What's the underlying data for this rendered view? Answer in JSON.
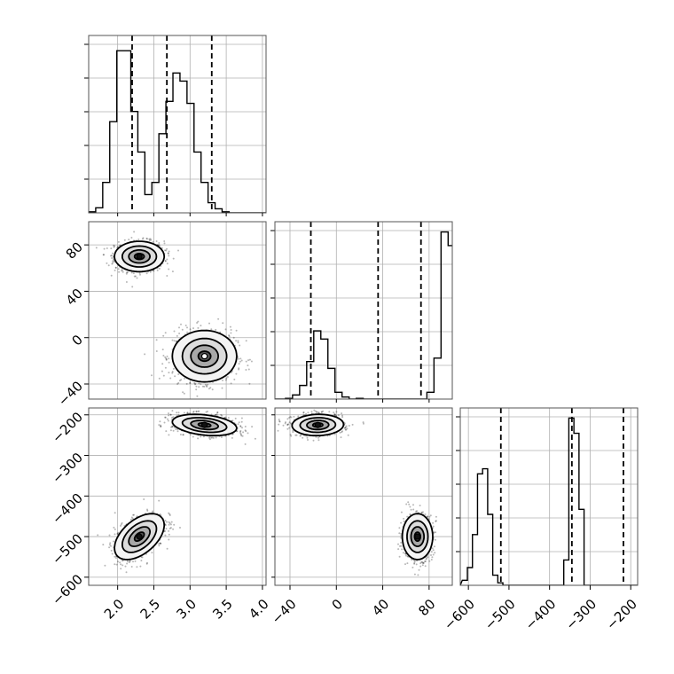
{
  "chart_data": {
    "type": "corner",
    "grid": true,
    "parameters": [
      {
        "range": [
          1.6,
          4.05
        ],
        "ticks": [
          "2.0",
          "2.5",
          "3.0",
          "3.5",
          "4.0"
        ],
        "tick_values": [
          2.0,
          2.5,
          3.0,
          3.5,
          4.0
        ],
        "quantiles": [
          2.2,
          2.68,
          3.3
        ]
      },
      {
        "range": [
          -53,
          100
        ],
        "ticks": [
          "-40",
          "0",
          "40",
          "80"
        ],
        "tick_values": [
          -40,
          0,
          40,
          80
        ],
        "quantiles": [
          -22,
          36,
          73
        ]
      },
      {
        "range": [
          -620,
          -183
        ],
        "ticks": [
          "-600",
          "-500",
          "-400",
          "-300",
          "-200"
        ],
        "tick_values": [
          -600,
          -500,
          -400,
          -300,
          -200
        ],
        "quantiles": [
          -520,
          -345,
          -218
        ]
      }
    ],
    "histograms": [
      {
        "param": 0,
        "bin_start": 1.6,
        "bin_width": 0.097,
        "counts": [
          1,
          5,
          30,
          90,
          160,
          160,
          100,
          60,
          18,
          30,
          78,
          110,
          138,
          130,
          108,
          60,
          30,
          10,
          4,
          1
        ],
        "ymax": 175
      },
      {
        "param": 1,
        "bin_start": -50,
        "bin_width": 6.1,
        "counts": [
          0,
          1,
          6,
          20,
          55,
          100,
          88,
          45,
          10,
          3,
          0,
          1,
          0,
          0,
          0,
          0,
          0,
          0,
          0,
          0,
          0,
          10,
          60,
          245,
          225,
          20,
          0
        ],
        "ymax": 260
      },
      {
        "param": 2,
        "bin_start": -615,
        "bin_width": 12.5,
        "counts": [
          2,
          7,
          20,
          44,
          46,
          28,
          4,
          1,
          0,
          0,
          0,
          0,
          0,
          0,
          0,
          0,
          0,
          0,
          0,
          0,
          10,
          66,
          60,
          30
        ],
        "ymax": 70
      }
    ],
    "modes": [
      {
        "weight": 0.5,
        "mean": [
          2.3,
          70,
          -500
        ],
        "sd": [
          0.17,
          6.5,
          28
        ],
        "corr": [
          [
            1,
            0,
            0.5
          ],
          [
            0,
            1,
            0
          ],
          [
            0.5,
            0,
            1
          ]
        ]
      },
      {
        "weight": 0.5,
        "mean": [
          3.2,
          -16,
          -225
        ],
        "sd": [
          0.22,
          11,
          13
        ],
        "corr": [
          [
            1,
            0,
            -0.3
          ],
          [
            0,
            1,
            0.05
          ],
          [
            -0.3,
            0.05,
            1
          ]
        ]
      }
    ],
    "contour_levels": [
      0.39,
      0.86,
      1.39,
      2.02
    ]
  }
}
